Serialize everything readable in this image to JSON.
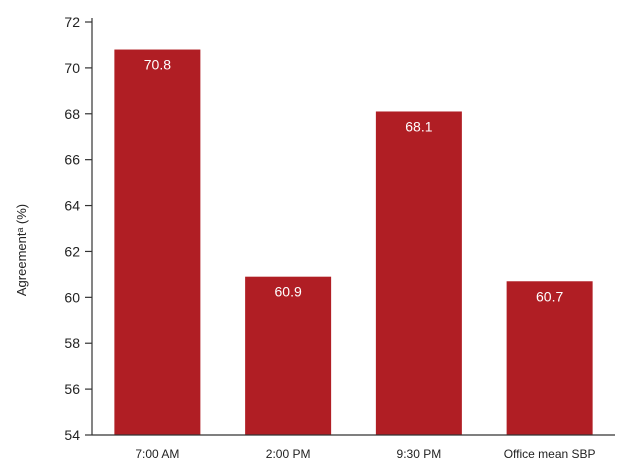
{
  "chart_data": {
    "type": "bar",
    "title": "",
    "xlabel": "",
    "ylabel": "Agreementᵃ (%)",
    "categories": [
      "7:00 AM",
      "2:00 PM",
      "9:30 PM",
      "Office mean SBP"
    ],
    "values": [
      70.8,
      60.9,
      68.1,
      60.7
    ],
    "data_labels": [
      "70.8",
      "60.9",
      "68.1",
      "60.7"
    ],
    "ylim": [
      54,
      72
    ],
    "yticks": [
      54,
      56,
      58,
      60,
      62,
      64,
      66,
      68,
      70,
      72
    ],
    "bar_color": "#b01e24",
    "grid": false,
    "legend": "none"
  }
}
